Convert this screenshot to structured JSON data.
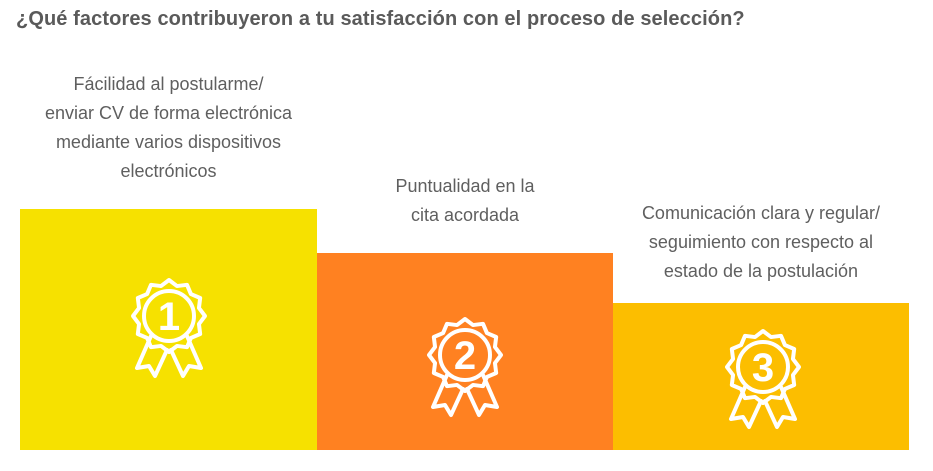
{
  "title": "¿Qué factores contribuyeron a tu satisfacción con el proceso de selección?",
  "podium": [
    {
      "rank": "1",
      "lines": [
        "Fácilidad al postularme/",
        "enviar CV de forma electrónica",
        "mediante varios dispositivos",
        "electrónicos"
      ],
      "color": "#f6e100",
      "icon": "award-ribbon-icon"
    },
    {
      "rank": "2",
      "lines": [
        "Puntualidad en la",
        "cita acordada"
      ],
      "color": "#ff8121",
      "icon": "award-ribbon-icon"
    },
    {
      "rank": "3",
      "lines": [
        "Comunicación clara y regular/",
        "seguimiento con respecto al",
        "estado de la postulación"
      ],
      "color": "#fcbe00",
      "icon": "award-ribbon-icon"
    }
  ]
}
